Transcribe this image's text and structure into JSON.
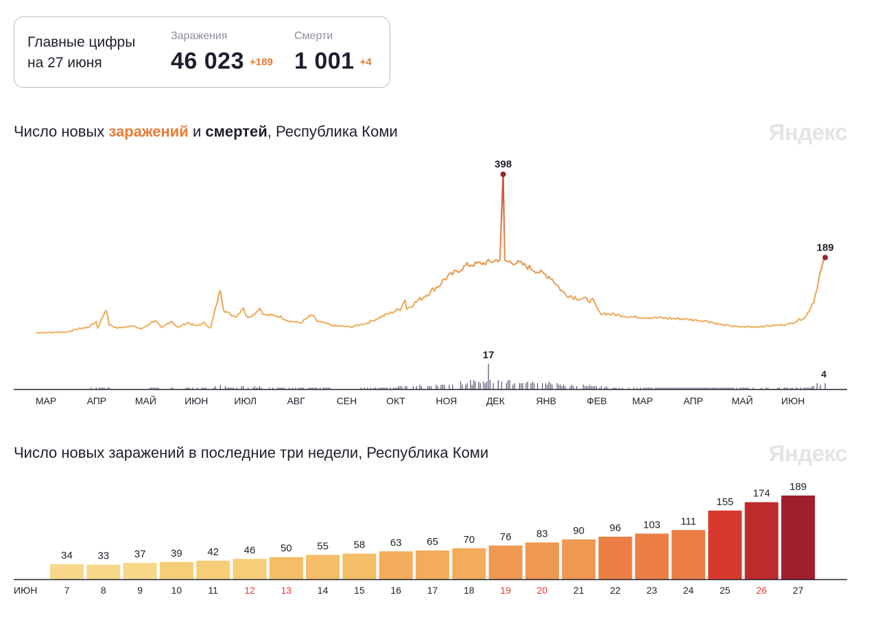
{
  "summary": {
    "heading_line1": "Главные цифры",
    "heading_line2": "на 27 июня",
    "infections_label": "Заражения",
    "infections_value": "46 023",
    "infections_delta": "+189",
    "deaths_label": "Смерти",
    "deaths_value": "1 001",
    "deaths_delta": "+4"
  },
  "brand": "Яндекс",
  "colors": {
    "infections_accent": "#e87a35",
    "line_low": "#efb565",
    "line_high": "#c94a35",
    "peak_marker": "#9b2232",
    "deaths_bars": "#4d4f6b",
    "axis": "#1d1f2b",
    "weekend_label": "#e03a2e"
  },
  "chart1": {
    "title_part1": "Число новых ",
    "title_part2": "заражений",
    "title_part3": " и ",
    "title_part4": "смертей",
    "title_part5": ", Республика Коми"
  },
  "chart2": {
    "title": "Число новых заражений в последние три недели, Республика Коми"
  },
  "chart_data": [
    {
      "type": "line",
      "title": "Число новых заражений и смертей, Республика Коми",
      "series": [
        {
          "name": "заражений",
          "anchors": [
            [
              "2020-03-01",
              0
            ],
            [
              "2020-03-20",
              2
            ],
            [
              "2020-03-27",
              10
            ],
            [
              "2020-04-02",
              14
            ],
            [
              "2020-04-07",
              28
            ],
            [
              "2020-04-08",
              12
            ],
            [
              "2020-04-13",
              60
            ],
            [
              "2020-04-15",
              20
            ],
            [
              "2020-04-20",
              12
            ],
            [
              "2020-04-28",
              18
            ],
            [
              "2020-05-05",
              10
            ],
            [
              "2020-05-13",
              32
            ],
            [
              "2020-05-17",
              12
            ],
            [
              "2020-05-23",
              30
            ],
            [
              "2020-05-27",
              13
            ],
            [
              "2020-06-02",
              26
            ],
            [
              "2020-06-07",
              17
            ],
            [
              "2020-06-12",
              25
            ],
            [
              "2020-06-16",
              12
            ],
            [
              "2020-06-19",
              60
            ],
            [
              "2020-06-22",
              110
            ],
            [
              "2020-06-24",
              60
            ],
            [
              "2020-06-28",
              45
            ],
            [
              "2020-07-02",
              42
            ],
            [
              "2020-07-06",
              65
            ],
            [
              "2020-07-08",
              40
            ],
            [
              "2020-07-12",
              45
            ],
            [
              "2020-07-16",
              62
            ],
            [
              "2020-07-19",
              45
            ],
            [
              "2020-07-28",
              42
            ],
            [
              "2020-08-03",
              30
            ],
            [
              "2020-08-10",
              25
            ],
            [
              "2020-08-17",
              45
            ],
            [
              "2020-08-20",
              30
            ],
            [
              "2020-08-30",
              18
            ],
            [
              "2020-09-10",
              15
            ],
            [
              "2020-09-20",
              25
            ],
            [
              "2020-10-01",
              45
            ],
            [
              "2020-10-10",
              60
            ],
            [
              "2020-10-13",
              85
            ],
            [
              "2020-10-14",
              60
            ],
            [
              "2020-10-24",
              90
            ],
            [
              "2020-11-03",
              120
            ],
            [
              "2020-11-06",
              135
            ],
            [
              "2020-11-12",
              150
            ],
            [
              "2020-11-20",
              170
            ],
            [
              "2020-11-30",
              175
            ],
            [
              "2020-12-06",
              180
            ],
            [
              "2020-12-10",
              185
            ],
            [
              "2020-12-12",
              398
            ],
            [
              "2020-12-13",
              180
            ],
            [
              "2020-12-22",
              175
            ],
            [
              "2020-12-30",
              160
            ],
            [
              "2021-01-10",
              140
            ],
            [
              "2021-01-18",
              100
            ],
            [
              "2021-01-24",
              90
            ],
            [
              "2021-02-05",
              80
            ],
            [
              "2021-02-09",
              50
            ],
            [
              "2021-02-20",
              45
            ],
            [
              "2021-03-01",
              40
            ],
            [
              "2021-03-15",
              38
            ],
            [
              "2021-04-01",
              35
            ],
            [
              "2021-04-15",
              30
            ],
            [
              "2021-04-25",
              20
            ],
            [
              "2021-05-05",
              15
            ],
            [
              "2021-05-15",
              15
            ],
            [
              "2021-05-25",
              18
            ],
            [
              "2021-06-05",
              22
            ],
            [
              "2021-06-15",
              40
            ],
            [
              "2021-06-20",
              80
            ],
            [
              "2021-06-24",
              150
            ],
            [
              "2021-06-27",
              189
            ]
          ]
        },
        {
          "name": "смертей",
          "note": "daily bars"
        }
      ],
      "labels": {
        "infections_peak": "398",
        "infections_last": "189",
        "deaths_peak": "17",
        "deaths_last": "4"
      },
      "x_ticks": [
        "МАР",
        "АПР",
        "МАЙ",
        "ИЮН",
        "ИЮЛ",
        "АВГ",
        "СЕН",
        "ОКТ",
        "НОЯ",
        "ДЕК",
        "ЯНВ",
        "ФЕВ",
        "МАР",
        "АПР",
        "МАЙ",
        "ИЮН"
      ],
      "x_range": [
        "2020-03-01",
        "2021-06-27"
      ],
      "ylim": [
        0,
        398
      ],
      "deaths_ylim": [
        0,
        17
      ],
      "grid": false
    },
    {
      "type": "bar",
      "title": "Число новых заражений в последние три недели, Республика Коми",
      "month_label": "ИЮН",
      "categories": [
        "7",
        "8",
        "9",
        "10",
        "11",
        "12",
        "13",
        "14",
        "15",
        "16",
        "17",
        "18",
        "19",
        "20",
        "21",
        "22",
        "23",
        "24",
        "25",
        "26",
        "27"
      ],
      "values": [
        34,
        33,
        37,
        39,
        42,
        46,
        50,
        55,
        58,
        63,
        65,
        70,
        76,
        83,
        90,
        96,
        103,
        111,
        155,
        174,
        189
      ],
      "weekend_days": [
        "12",
        "13",
        "19",
        "20",
        "26"
      ],
      "ylim": [
        0,
        189
      ],
      "grid": false
    }
  ]
}
